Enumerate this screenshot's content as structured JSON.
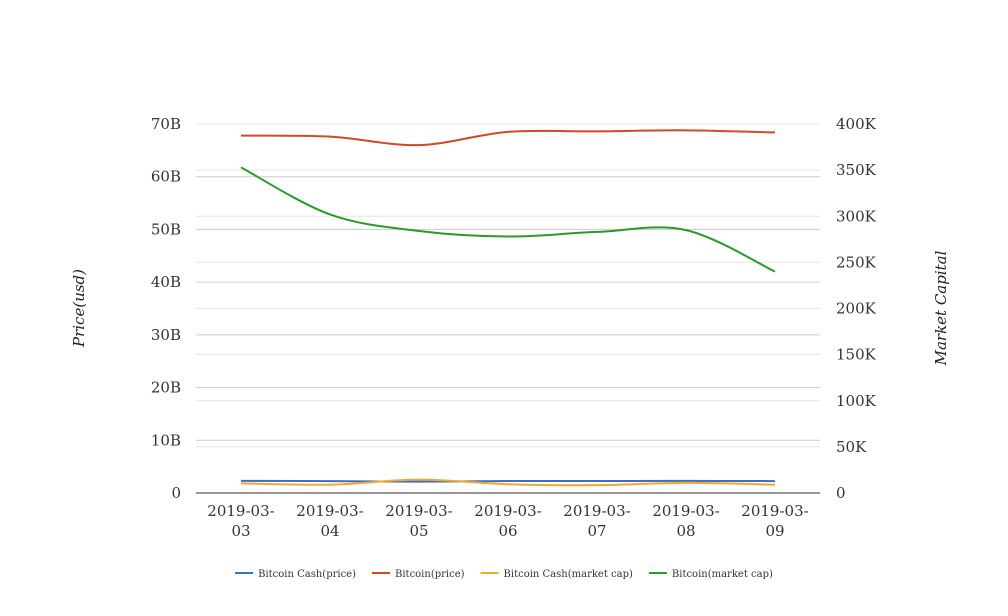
{
  "chart_data": {
    "type": "line",
    "title": "",
    "x": [
      "2019-03-03",
      "2019-03-04",
      "2019-03-05",
      "2019-03-06",
      "2019-03-07",
      "2019-03-08",
      "2019-03-09"
    ],
    "x_tick_labels": [
      [
        "2019-03-",
        "03"
      ],
      [
        "2019-03-",
        "04"
      ],
      [
        "2019-03-",
        "05"
      ],
      [
        "2019-03-",
        "06"
      ],
      [
        "2019-03-",
        "07"
      ],
      [
        "2019-03-",
        "08"
      ],
      [
        "2019-03-",
        "09"
      ]
    ],
    "y_left": {
      "label": "Price(usd)",
      "ticks": [
        "0",
        "10B",
        "20B",
        "30B",
        "40B",
        "50B",
        "60B",
        "70B"
      ],
      "range": [
        0,
        70000000000
      ]
    },
    "y_right": {
      "label": "Market Capital",
      "ticks": [
        "0",
        "50K",
        "100K",
        "150K",
        "200K",
        "250K",
        "300K",
        "350K",
        "400K"
      ],
      "range": [
        0,
        400000
      ]
    },
    "grid": true,
    "legend_position": "bottom",
    "series": [
      {
        "name": "Bitcoin Cash(price)",
        "axis": "left",
        "color": "#3a6fc4",
        "values": [
          2300000000,
          2250000000,
          2150000000,
          2280000000,
          2270000000,
          2290000000,
          2260000000
        ]
      },
      {
        "name": "Bitcoin(price)",
        "axis": "left",
        "color": "#d04a26",
        "values": [
          67800000000,
          67600000000,
          66000000000,
          68500000000,
          68600000000,
          68800000000,
          68400000000
        ]
      },
      {
        "name": "Bitcoin Cash(market cap)",
        "axis": "right",
        "color": "#f0a830",
        "values": [
          10500,
          9000,
          14500,
          9500,
          8500,
          11000,
          9000
        ]
      },
      {
        "name": "Bitcoin(market cap)",
        "axis": "right",
        "color": "#2a9a2a",
        "values": [
          353000,
          302000,
          284000,
          278000,
          283000,
          285000,
          240000
        ]
      }
    ]
  }
}
